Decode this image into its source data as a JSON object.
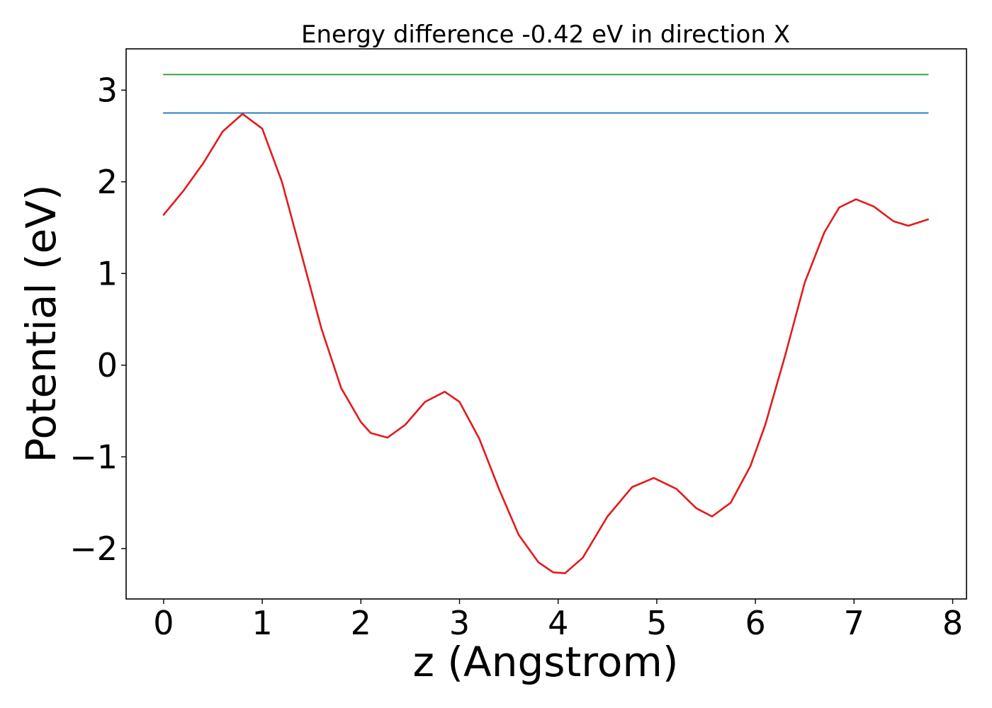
{
  "chart_data": {
    "type": "line",
    "title": "Energy difference -0.42 eV in direction X",
    "xlabel": "z (Angstrom)",
    "ylabel": "Potential (eV)",
    "xlim": [
      -0.38,
      8.14
    ],
    "ylim": [
      -2.55,
      3.45
    ],
    "xticks": [
      0,
      1,
      2,
      3,
      4,
      5,
      6,
      7,
      8
    ],
    "yticks": [
      -2,
      -1,
      0,
      1,
      2,
      3
    ],
    "xtick_labels": [
      "0",
      "1",
      "2",
      "3",
      "4",
      "5",
      "6",
      "7",
      "8"
    ],
    "ytick_labels": [
      "−2",
      "−1",
      "0",
      "1",
      "2",
      "3"
    ],
    "grid": false,
    "series": [
      {
        "color": "#2ca02c",
        "x": [
          0,
          7.75
        ],
        "y": [
          3.17,
          3.17
        ]
      },
      {
        "color": "#1f77b4",
        "x": [
          0,
          7.75
        ],
        "y": [
          2.75,
          2.75
        ]
      },
      {
        "color": "#e31a1c",
        "x": [
          0,
          0.2,
          0.4,
          0.6,
          0.8,
          1.0,
          1.2,
          1.4,
          1.6,
          1.8,
          2.0,
          2.1,
          2.27,
          2.45,
          2.65,
          2.85,
          3.0,
          3.2,
          3.4,
          3.6,
          3.8,
          3.95,
          4.07,
          4.25,
          4.5,
          4.75,
          4.97,
          5.2,
          5.4,
          5.56,
          5.75,
          5.95,
          6.1,
          6.3,
          6.5,
          6.7,
          6.85,
          7.02,
          7.2,
          7.4,
          7.55,
          7.75
        ],
        "y": [
          1.64,
          1.9,
          2.2,
          2.55,
          2.74,
          2.58,
          2.0,
          1.2,
          0.4,
          -0.25,
          -0.62,
          -0.74,
          -0.79,
          -0.65,
          -0.4,
          -0.29,
          -0.4,
          -0.8,
          -1.35,
          -1.85,
          -2.15,
          -2.26,
          -2.27,
          -2.1,
          -1.65,
          -1.33,
          -1.23,
          -1.35,
          -1.56,
          -1.65,
          -1.5,
          -1.1,
          -0.65,
          0.1,
          0.9,
          1.45,
          1.72,
          1.81,
          1.73,
          1.57,
          1.52,
          1.59
        ]
      }
    ]
  }
}
